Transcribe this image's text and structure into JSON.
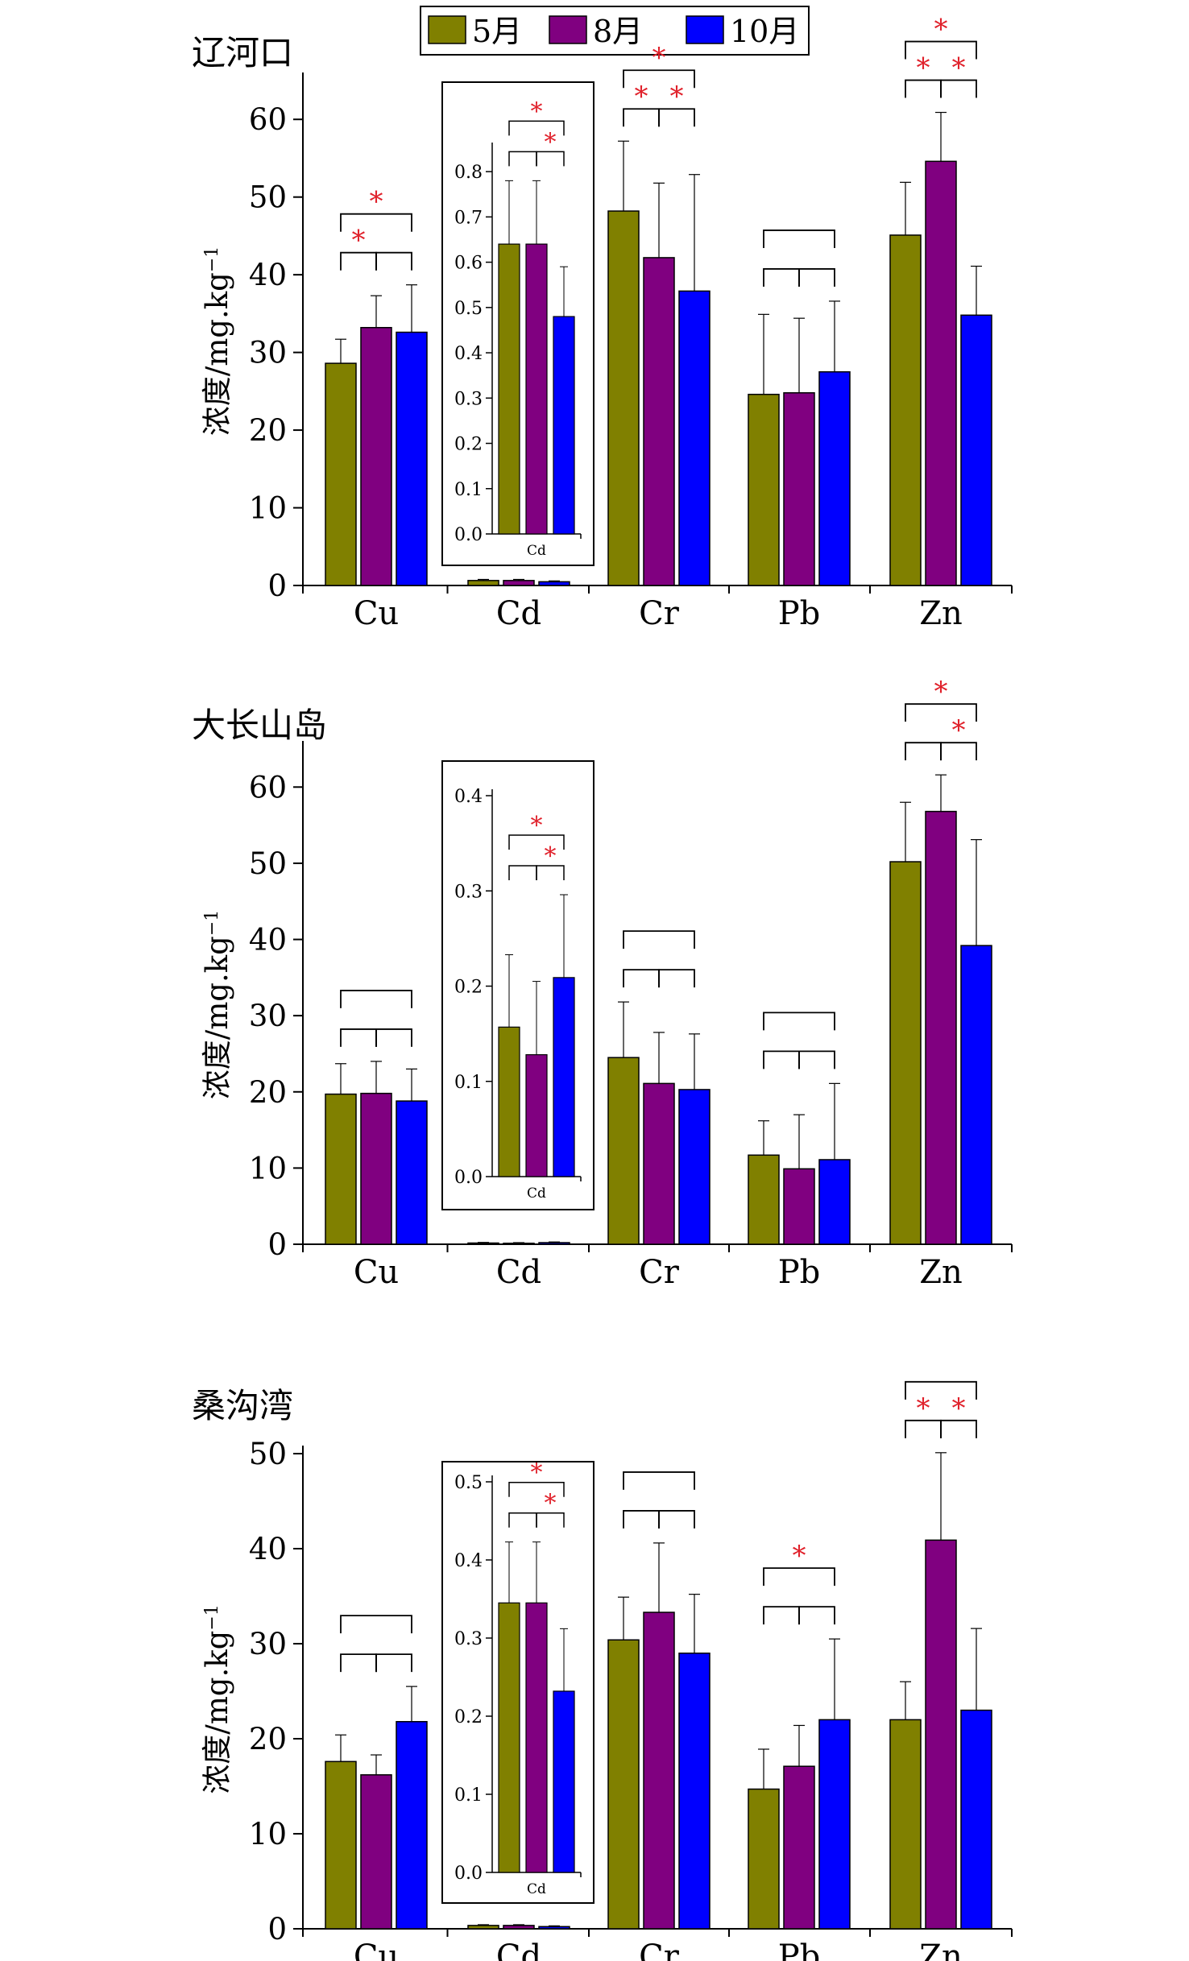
{
  "legend": [
    "5月",
    "8月",
    "10月"
  ],
  "colors": [
    "#808000",
    "#800080",
    "#0000ff"
  ],
  "chart_data": [
    {
      "type": "bar",
      "site": "辽河口",
      "ylabel": "浓度/mg.kg",
      "ylabel_sup": "−1",
      "categories": [
        "Cu",
        "Cd",
        "Cr",
        "Pb",
        "Zn"
      ],
      "ylim": [
        0,
        65
      ],
      "yticks": [
        0,
        10,
        20,
        30,
        40,
        50,
        60
      ],
      "series": [
        {
          "name": "5月",
          "values": [
            28.6,
            0.64,
            48.2,
            24.6,
            45.1
          ],
          "errors": [
            3.1,
            0.14,
            9.0,
            10.3,
            6.8
          ]
        },
        {
          "name": "8月",
          "values": [
            33.2,
            0.64,
            42.2,
            24.8,
            54.6
          ],
          "errors": [
            4.1,
            0.14,
            9.6,
            9.6,
            6.3
          ]
        },
        {
          "name": "10月",
          "values": [
            32.6,
            0.48,
            37.9,
            27.5,
            34.8
          ],
          "errors": [
            6.1,
            0.11,
            15.0,
            9.1,
            6.3
          ]
        }
      ],
      "brackets": [
        {
          "category": "Cu",
          "pairs": [
            [
              0,
              1,
              "*"
            ],
            [
              1,
              2,
              ""
            ],
            [
              0,
              2,
              "*"
            ]
          ]
        },
        {
          "category": "Cr",
          "pairs": [
            [
              0,
              1,
              "*"
            ],
            [
              1,
              2,
              "*"
            ],
            [
              0,
              2,
              "*"
            ]
          ]
        },
        {
          "category": "Pb",
          "pairs": [
            [
              0,
              1,
              ""
            ],
            [
              1,
              2,
              ""
            ],
            [
              0,
              2,
              ""
            ]
          ]
        },
        {
          "category": "Zn",
          "pairs": [
            [
              0,
              1,
              "*"
            ],
            [
              1,
              2,
              "*"
            ],
            [
              0,
              2,
              "*"
            ]
          ]
        }
      ],
      "inset": {
        "category": "Cd",
        "ylim": [
          0,
          0.85
        ],
        "yticks": [
          0.0,
          0.1,
          0.2,
          0.3,
          0.4,
          0.5,
          0.6,
          0.7,
          0.8
        ],
        "values": [
          0.64,
          0.64,
          0.48
        ],
        "errors": [
          0.14,
          0.14,
          0.11
        ],
        "brackets": [
          [
            0,
            1,
            ""
          ],
          [
            1,
            2,
            "*"
          ],
          [
            0,
            2,
            "*"
          ]
        ]
      }
    },
    {
      "type": "bar",
      "site": "大长山岛",
      "ylabel": "浓度/mg.kg",
      "ylabel_sup": "−1",
      "categories": [
        "Cu",
        "Cd",
        "Cr",
        "Pb",
        "Zn"
      ],
      "ylim": [
        0,
        65
      ],
      "yticks": [
        0,
        10,
        20,
        30,
        40,
        50,
        60
      ],
      "series": [
        {
          "name": "5月",
          "values": [
            19.7,
            0.16,
            24.5,
            11.7,
            50.2
          ],
          "errors": [
            4.0,
            0.08,
            7.3,
            4.5,
            7.8
          ]
        },
        {
          "name": "8月",
          "values": [
            19.8,
            0.13,
            21.1,
            9.9,
            56.8
          ],
          "errors": [
            4.2,
            0.08,
            6.7,
            7.1,
            4.8
          ]
        },
        {
          "name": "10月",
          "values": [
            18.8,
            0.21,
            20.3,
            11.1,
            39.2
          ],
          "errors": [
            4.2,
            0.09,
            7.3,
            10.0,
            13.9
          ]
        }
      ],
      "brackets": [
        {
          "category": "Cu",
          "pairs": [
            [
              0,
              1,
              ""
            ],
            [
              1,
              2,
              ""
            ],
            [
              0,
              2,
              ""
            ]
          ]
        },
        {
          "category": "Cr",
          "pairs": [
            [
              0,
              1,
              ""
            ],
            [
              1,
              2,
              ""
            ],
            [
              0,
              2,
              ""
            ]
          ]
        },
        {
          "category": "Pb",
          "pairs": [
            [
              0,
              1,
              ""
            ],
            [
              1,
              2,
              ""
            ],
            [
              0,
              2,
              ""
            ]
          ]
        },
        {
          "category": "Zn",
          "pairs": [
            [
              0,
              1,
              ""
            ],
            [
              1,
              2,
              "*"
            ],
            [
              0,
              2,
              "*"
            ]
          ]
        }
      ],
      "inset": {
        "category": "Cd",
        "ylim": [
          0,
          0.4
        ],
        "yticks": [
          0.0,
          0.1,
          0.2,
          0.3,
          0.4
        ],
        "values": [
          0.157,
          0.128,
          0.209
        ],
        "errors": [
          0.076,
          0.077,
          0.087
        ],
        "brackets": [
          [
            0,
            1,
            ""
          ],
          [
            1,
            2,
            "*"
          ],
          [
            0,
            2,
            "*"
          ]
        ]
      }
    },
    {
      "type": "bar",
      "site": "桑沟湾",
      "ylabel": "浓度/mg.kg",
      "ylabel_sup": "−1",
      "categories": [
        "Cu",
        "Cd",
        "Cr",
        "Pb",
        "Zn"
      ],
      "ylim": [
        0,
        50
      ],
      "yticks": [
        0,
        10,
        20,
        30,
        40,
        50
      ],
      "series": [
        {
          "name": "5月",
          "values": [
            17.6,
            0.35,
            30.4,
            14.7,
            22.0
          ],
          "errors": [
            2.8,
            0.08,
            4.5,
            4.2,
            4.0
          ]
        },
        {
          "name": "8月",
          "values": [
            16.2,
            0.35,
            33.3,
            17.1,
            40.9
          ],
          "errors": [
            2.1,
            0.08,
            7.3,
            4.3,
            9.2
          ]
        },
        {
          "name": "10月",
          "values": [
            21.8,
            0.23,
            29.0,
            22.0,
            23.0
          ],
          "errors": [
            3.7,
            0.08,
            6.2,
            8.5,
            8.6
          ]
        }
      ],
      "brackets": [
        {
          "category": "Cu",
          "pairs": [
            [
              0,
              1,
              ""
            ],
            [
              1,
              2,
              ""
            ],
            [
              0,
              2,
              ""
            ]
          ]
        },
        {
          "category": "Cr",
          "pairs": [
            [
              0,
              1,
              ""
            ],
            [
              1,
              2,
              ""
            ],
            [
              0,
              2,
              ""
            ]
          ]
        },
        {
          "category": "Pb",
          "pairs": [
            [
              0,
              1,
              ""
            ],
            [
              1,
              2,
              ""
            ],
            [
              0,
              2,
              "*"
            ]
          ]
        },
        {
          "category": "Zn",
          "pairs": [
            [
              0,
              1,
              "*"
            ],
            [
              1,
              2,
              "*"
            ],
            [
              0,
              2,
              ""
            ]
          ]
        }
      ],
      "inset": {
        "category": "Cd",
        "ylim": [
          0,
          0.5
        ],
        "yticks": [
          0.0,
          0.1,
          0.2,
          0.3,
          0.4,
          0.5
        ],
        "values": [
          0.345,
          0.345,
          0.232
        ],
        "errors": [
          0.078,
          0.078,
          0.08
        ],
        "brackets": [
          [
            0,
            1,
            ""
          ],
          [
            1,
            2,
            "*"
          ],
          [
            0,
            2,
            "*"
          ]
        ]
      }
    }
  ]
}
